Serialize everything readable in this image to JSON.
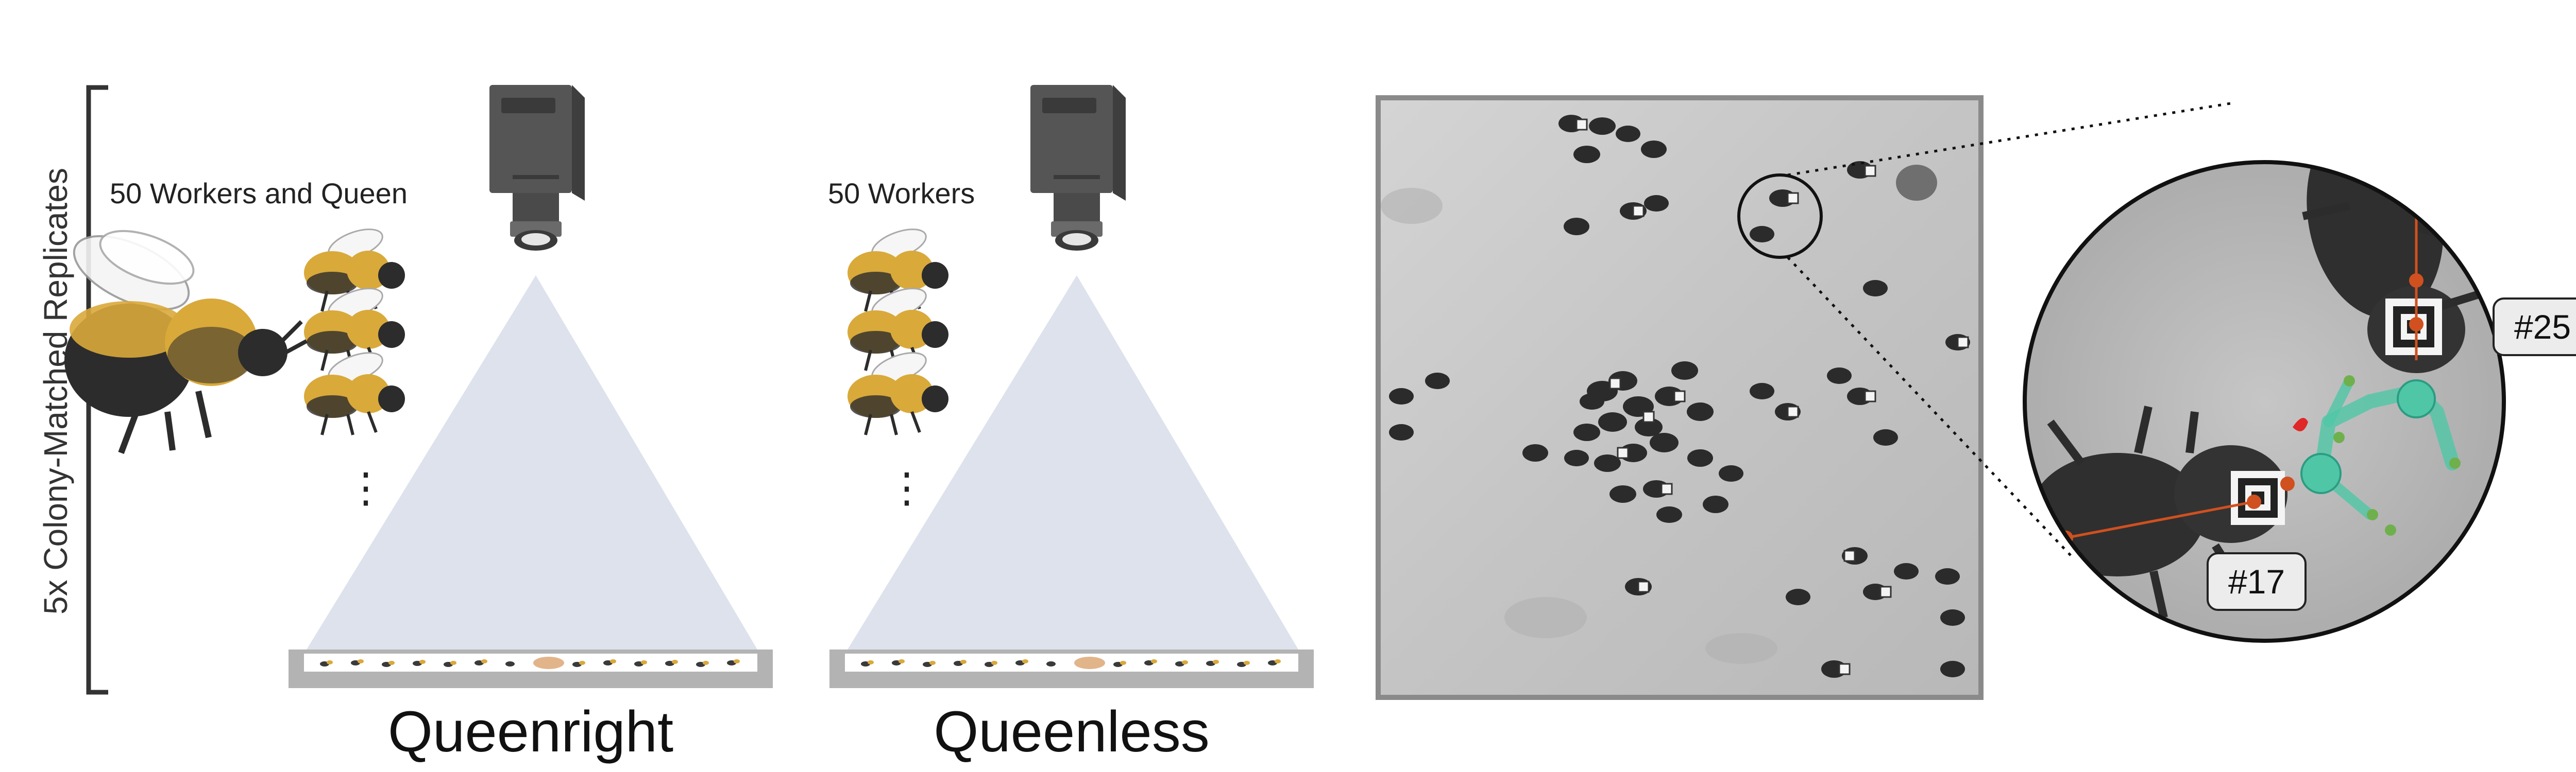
{
  "replicates_label": "5x Colony-Matched Replicates",
  "panels": [
    {
      "id": "queenright",
      "group_label": "50 Workers and Queen",
      "condition_label": "Queenright",
      "ellipsis": "⋮",
      "has_queen": true
    },
    {
      "id": "queenless",
      "group_label": "50 Workers",
      "condition_label": "Queenless",
      "ellipsis": "⋮",
      "has_queen": false
    }
  ],
  "tags": {
    "bee_a": "#17",
    "bee_b": "#25"
  },
  "colors": {
    "bee_yellow": "#d9a93a",
    "bee_dark": "#2c2c2c",
    "camera_body": "#555555",
    "light_cone": "#dde2ec",
    "platform": "#b3b3b3",
    "arena_bg": "#c9c9c9",
    "keypoint_orange": "#d0501f",
    "pose_green": "#4fc7a6",
    "tag_label_bg": "#ececec"
  },
  "icons": [
    "camera-icon",
    "bumblebee-worker-icon",
    "bumblebee-queen-icon",
    "ellipsis-icon"
  ]
}
